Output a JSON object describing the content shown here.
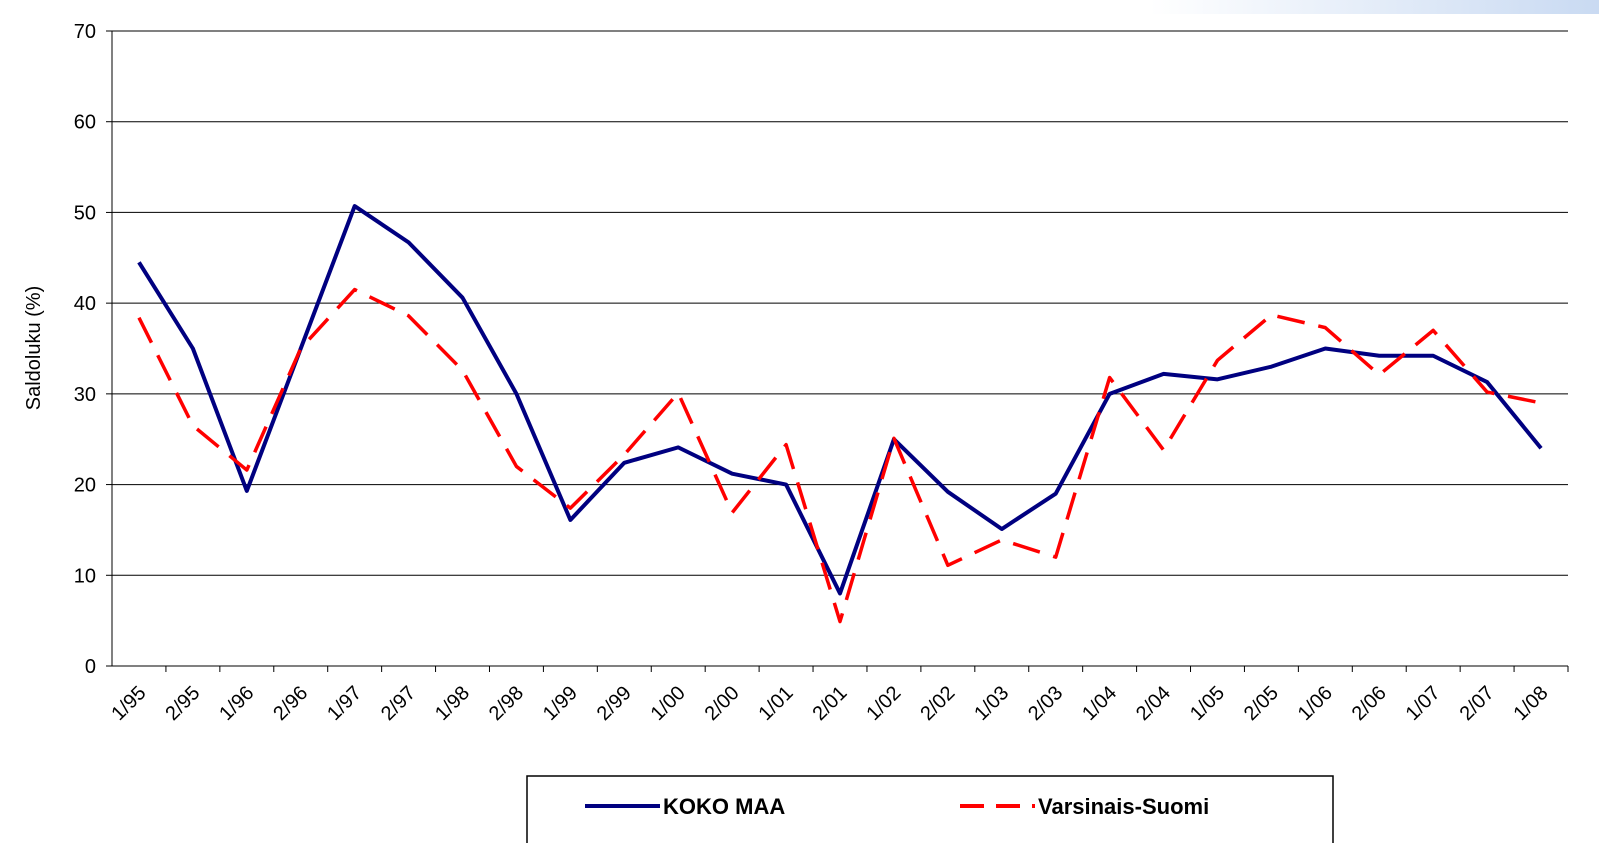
{
  "chart_data": {
    "type": "line",
    "y_label": "Saldoluku (%)",
    "categories": [
      "1/95",
      "2/95",
      "1/96",
      "2/96",
      "1/97",
      "2/97",
      "1/98",
      "2/98",
      "1/99",
      "2/99",
      "1/00",
      "2/00",
      "1/01",
      "2/01",
      "1/02",
      "2/02",
      "1/03",
      "2/03",
      "1/04",
      "2/04",
      "1/05",
      "2/05",
      "1/06",
      "2/06",
      "1/07",
      "2/07",
      "1/08"
    ],
    "series": [
      {
        "name": "KOKO MAA",
        "color": "#000080",
        "dash": "solid",
        "values": [
          44.5,
          35,
          19.3,
          35,
          50.7,
          46.7,
          40.6,
          30,
          16.1,
          22.4,
          24.1,
          21.2,
          20,
          8,
          25,
          19.2,
          15.1,
          19,
          30,
          32.2,
          31.6,
          33,
          35,
          34.2,
          34.2,
          31.3,
          24
        ]
      },
      {
        "name": "Varsinais-Suomi",
        "color": "#ff0000",
        "dash": "dashed",
        "values": [
          38.4,
          26.5,
          21.6,
          35,
          41.5,
          38.6,
          32.6,
          22,
          17.4,
          23.3,
          30.1,
          16.9,
          24.4,
          4.9,
          25.1,
          11.1,
          13.9,
          12,
          31.8,
          23.8,
          33.7,
          38.7,
          37.3,
          32.1,
          37,
          30.2,
          29
        ]
      }
    ],
    "ylim": [
      0,
      70
    ],
    "yticks": [
      0,
      10,
      20,
      30,
      40,
      50,
      60,
      70
    ],
    "grid": true,
    "legend": "bottom"
  }
}
